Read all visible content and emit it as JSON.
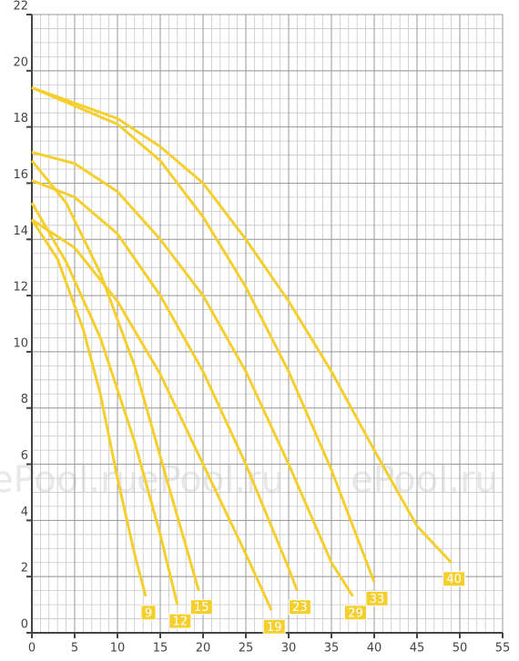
{
  "chart_data": {
    "type": "line",
    "watermark": "ePool.ru",
    "xlim": [
      0,
      55
    ],
    "xticks": [
      0,
      5,
      10,
      15,
      20,
      25,
      30,
      35,
      40,
      45,
      50,
      55
    ],
    "ylim": [
      0,
      22
    ],
    "yticks": [
      0,
      2,
      4,
      6,
      8,
      10,
      12,
      14,
      16,
      18,
      20,
      22
    ],
    "grid": true,
    "minor_grid": true,
    "series": [
      {
        "name": "9",
        "color": "#f5cf2e",
        "x": [
          0,
          3,
          6,
          8,
          10,
          12,
          13.3
        ],
        "values": [
          14.7,
          13.3,
          10.8,
          8.5,
          5.5,
          2.8,
          1.3
        ]
      },
      {
        "name": "12",
        "color": "#f5cf2e",
        "x": [
          0,
          4,
          8,
          12,
          15,
          17
        ],
        "values": [
          15.3,
          13.2,
          10.5,
          6.8,
          3.5,
          1
        ]
      },
      {
        "name": "15",
        "color": "#f5cf2e",
        "x": [
          0,
          4,
          8,
          12,
          16,
          19.5
        ],
        "values": [
          16.8,
          15.3,
          12.8,
          9.5,
          5.2,
          1.5
        ]
      },
      {
        "name": "19",
        "color": "#f5cf2e",
        "x": [
          0,
          5,
          10,
          15,
          20,
          25,
          28
        ],
        "values": [
          14.7,
          13.7,
          11.8,
          9.2,
          6,
          2.8,
          0.8
        ]
      },
      {
        "name": "23",
        "color": "#f5cf2e",
        "x": [
          0,
          5,
          10,
          15,
          20,
          25,
          30,
          31
        ],
        "values": [
          16.1,
          15.5,
          14.2,
          12,
          9.3,
          6,
          2.3,
          1.5
        ]
      },
      {
        "name": "29",
        "color": "#f5cf2e",
        "x": [
          0,
          5,
          10,
          15,
          20,
          25,
          30,
          35,
          37.5
        ],
        "values": [
          17.1,
          16.7,
          15.7,
          14,
          12,
          9.3,
          6,
          2.5,
          1.3
        ]
      },
      {
        "name": "33",
        "color": "#f5cf2e",
        "x": [
          0,
          10,
          15,
          20,
          25,
          30,
          35,
          40
        ],
        "values": [
          19.4,
          18.1,
          16.8,
          14.8,
          12.3,
          9.3,
          5.8,
          1.8
        ]
      },
      {
        "name": "40",
        "color": "#f5cf2e",
        "x": [
          0,
          10,
          15,
          20,
          25,
          30,
          35,
          40,
          45,
          49
        ],
        "values": [
          19.4,
          18.3,
          17.3,
          16,
          14,
          11.8,
          9.3,
          6.5,
          3.8,
          2.5
        ]
      }
    ]
  }
}
